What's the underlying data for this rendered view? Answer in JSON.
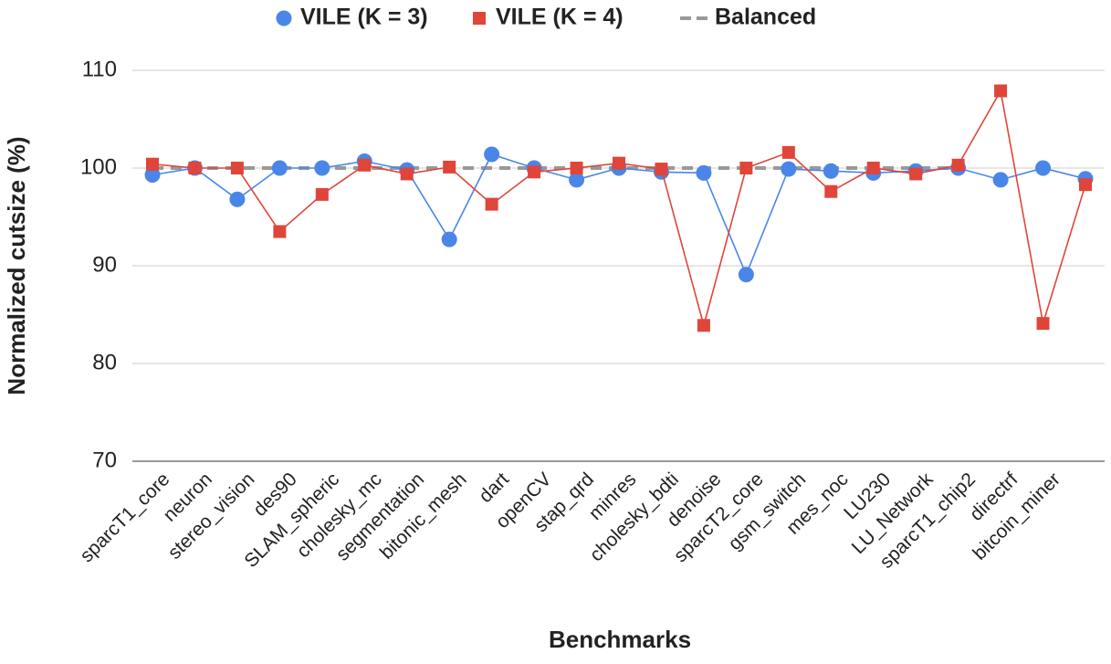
{
  "chart_data": {
    "type": "line",
    "x_label": "Benchmarks",
    "y_label": "Normalized cutsize (%)",
    "categories": [
      "sparcT1_core",
      "neuron",
      "stereo_vision",
      "des90",
      "SLAM_spheric",
      "cholesky_mc",
      "segmentation",
      "bitonic_mesh",
      "dart",
      "openCV",
      "stap_qrd",
      "minres",
      "cholesky_bdti",
      "denoise",
      "sparcT2_core",
      "gsm_switch",
      "mes_noc",
      "LU230",
      "LU_Network",
      "sparcT1_chip2",
      "directrf",
      "bitcoin_miner",
      null
    ],
    "series": [
      {
        "name": "VILE (K = 3)",
        "color": "#4a86e8",
        "marker": "circle",
        "values": [
          99.3,
          100,
          96.8,
          100,
          100,
          100.7,
          99.8,
          92.7,
          101.4,
          100,
          98.8,
          100,
          99.6,
          99.5,
          89.1,
          99.9,
          99.7,
          99.5,
          99.7,
          100,
          98.8,
          100,
          98.9
        ]
      },
      {
        "name": "VILE (K = 4)",
        "color": "#e0453a",
        "marker": "square",
        "values": [
          100.4,
          100,
          100,
          93.5,
          97.3,
          100.3,
          99.4,
          100.1,
          96.3,
          99.6,
          100,
          100.5,
          99.9,
          83.9,
          100,
          101.6,
          97.6,
          100,
          99.4,
          100.3,
          107.9,
          84.1,
          98.3
        ]
      },
      {
        "name": "Balanced",
        "color": "#999999",
        "marker": "dash",
        "values": [
          100,
          100,
          100,
          100,
          100,
          100,
          100,
          100,
          100,
          100,
          100,
          100,
          100,
          100,
          100,
          100,
          100,
          100,
          100,
          100,
          null,
          null,
          null
        ]
      }
    ],
    "ylim": [
      70,
      110
    ],
    "yticks": [
      70,
      80,
      90,
      100,
      110
    ],
    "grid": true,
    "legend": "top"
  }
}
